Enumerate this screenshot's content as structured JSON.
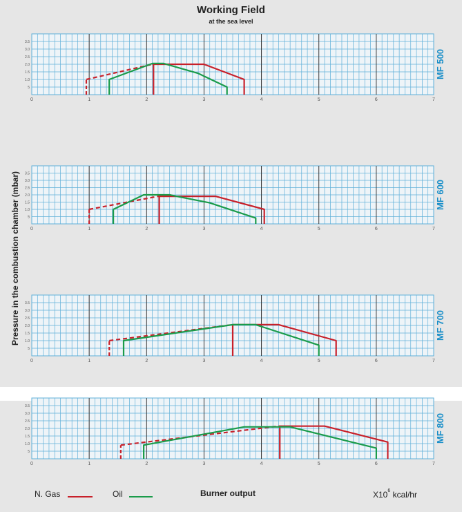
{
  "title": "Working Field",
  "subtitle": "at the sea level",
  "ylabel": "Pressure in the combustion chamber (mbar)",
  "xlabel": "Burner output",
  "unit": {
    "base": "X10",
    "exp": "6",
    "rest": "kcal/hr"
  },
  "legend": [
    {
      "name": "N. Gas",
      "color": "#c8202a"
    },
    {
      "name": "Oil",
      "color": "#1a9b4a"
    }
  ],
  "colors": {
    "gas": "#c8202a",
    "oil": "#1a9b4a",
    "grid": "#5fb0d9",
    "label": "#1a8fc9",
    "major": "#333333"
  },
  "chart_data": [
    {
      "type": "line",
      "model": "MF 500",
      "xlim": [
        0,
        7
      ],
      "ylim": [
        0,
        4
      ],
      "x_ticks": [
        "0",
        "1",
        "2",
        "3",
        "4",
        "5",
        "6",
        "7"
      ],
      "y_ticks": [
        "5",
        "1.0",
        "1.5",
        "2.0",
        "2.5",
        "3.0",
        "3.5"
      ],
      "series": [
        {
          "kind": "gas",
          "points": [
            [
              0.95,
              0
            ],
            [
              0.95,
              1.0
            ],
            [
              2.1,
              2.0
            ],
            [
              3.0,
              2.0
            ],
            [
              3.7,
              1.0
            ],
            [
              3.7,
              0
            ]
          ]
        },
        {
          "kind": "gas-dash",
          "points": [
            [
              0.95,
              1.0
            ],
            [
              2.1,
              2.0
            ]
          ]
        },
        {
          "kind": "gas-vert",
          "points": [
            [
              2.12,
              0
            ],
            [
              2.12,
              2.0
            ]
          ]
        },
        {
          "kind": "oil",
          "points": [
            [
              1.35,
              0
            ],
            [
              1.35,
              1.0
            ],
            [
              2.1,
              2.05
            ],
            [
              2.3,
              2.05
            ],
            [
              2.9,
              1.4
            ],
            [
              3.4,
              0.5
            ],
            [
              3.4,
              0
            ]
          ]
        }
      ]
    },
    {
      "type": "line",
      "model": "MF 600",
      "xlim": [
        0,
        7
      ],
      "ylim": [
        0,
        4
      ],
      "x_ticks": [
        "0",
        "1",
        "2",
        "3",
        "4",
        "5",
        "6",
        "7"
      ],
      "y_ticks": [
        "5",
        "1.0",
        "1.5",
        "2.0",
        "2.5",
        "3.0",
        "3.5"
      ],
      "series": [
        {
          "kind": "gas",
          "points": [
            [
              1.0,
              0
            ],
            [
              1.0,
              1.0
            ],
            [
              2.2,
              1.9
            ],
            [
              3.2,
              1.9
            ],
            [
              4.05,
              1.0
            ],
            [
              4.05,
              0
            ]
          ]
        },
        {
          "kind": "gas-dash",
          "points": [
            [
              1.0,
              1.0
            ],
            [
              2.2,
              1.9
            ]
          ]
        },
        {
          "kind": "gas-vert",
          "points": [
            [
              2.22,
              0
            ],
            [
              2.22,
              1.95
            ]
          ]
        },
        {
          "kind": "oil",
          "points": [
            [
              1.42,
              0
            ],
            [
              1.42,
              1.0
            ],
            [
              1.95,
              2.0
            ],
            [
              2.4,
              2.0
            ],
            [
              3.1,
              1.45
            ],
            [
              3.9,
              0.4
            ],
            [
              3.9,
              0
            ]
          ]
        }
      ]
    },
    {
      "type": "line",
      "model": "MF 700",
      "xlim": [
        0,
        7
      ],
      "ylim": [
        0,
        4
      ],
      "x_ticks": [
        "0",
        "1",
        "2",
        "3",
        "4",
        "5",
        "6",
        "7"
      ],
      "y_ticks": [
        "5",
        "1.0",
        "1.5",
        "2.0",
        "2.5",
        "3.0",
        "3.5"
      ],
      "series": [
        {
          "kind": "gas",
          "points": [
            [
              1.35,
              0
            ],
            [
              1.35,
              1.0
            ],
            [
              3.5,
              2.05
            ],
            [
              4.3,
              2.05
            ],
            [
              5.3,
              1.0
            ],
            [
              5.3,
              0
            ]
          ]
        },
        {
          "kind": "gas-dash",
          "points": [
            [
              1.35,
              1.0
            ],
            [
              3.5,
              2.05
            ]
          ]
        },
        {
          "kind": "gas-vert",
          "points": [
            [
              3.5,
              0
            ],
            [
              3.5,
              2.05
            ]
          ]
        },
        {
          "kind": "oil",
          "points": [
            [
              1.6,
              0
            ],
            [
              1.6,
              1.0
            ],
            [
              3.5,
              2.05
            ],
            [
              3.9,
              2.05
            ],
            [
              5.0,
              0.7
            ],
            [
              5.0,
              0
            ]
          ]
        }
      ]
    },
    {
      "type": "line",
      "model": "MF 800",
      "xlim": [
        0,
        7
      ],
      "ylim": [
        0,
        4
      ],
      "x_ticks": [
        "0",
        "1",
        "2",
        "3",
        "4",
        "5",
        "6",
        "7"
      ],
      "y_ticks": [
        "5",
        "1.0",
        "1.5",
        "2.0",
        "2.5",
        "3.0",
        "3.5"
      ],
      "series": [
        {
          "kind": "gas",
          "points": [
            [
              1.55,
              0
            ],
            [
              1.55,
              0.9
            ],
            [
              4.3,
              2.15
            ],
            [
              5.1,
              2.15
            ],
            [
              6.2,
              1.1
            ],
            [
              6.2,
              0
            ]
          ]
        },
        {
          "kind": "gas-dash",
          "points": [
            [
              1.55,
              0.9
            ],
            [
              4.3,
              2.15
            ]
          ]
        },
        {
          "kind": "gas-vert",
          "points": [
            [
              4.32,
              0
            ],
            [
              4.32,
              2.15
            ]
          ]
        },
        {
          "kind": "oil",
          "points": [
            [
              1.95,
              0
            ],
            [
              1.95,
              0.9
            ],
            [
              3.7,
              2.1
            ],
            [
              4.5,
              2.1
            ],
            [
              6.0,
              0.7
            ],
            [
              6.0,
              0
            ]
          ]
        }
      ]
    }
  ]
}
